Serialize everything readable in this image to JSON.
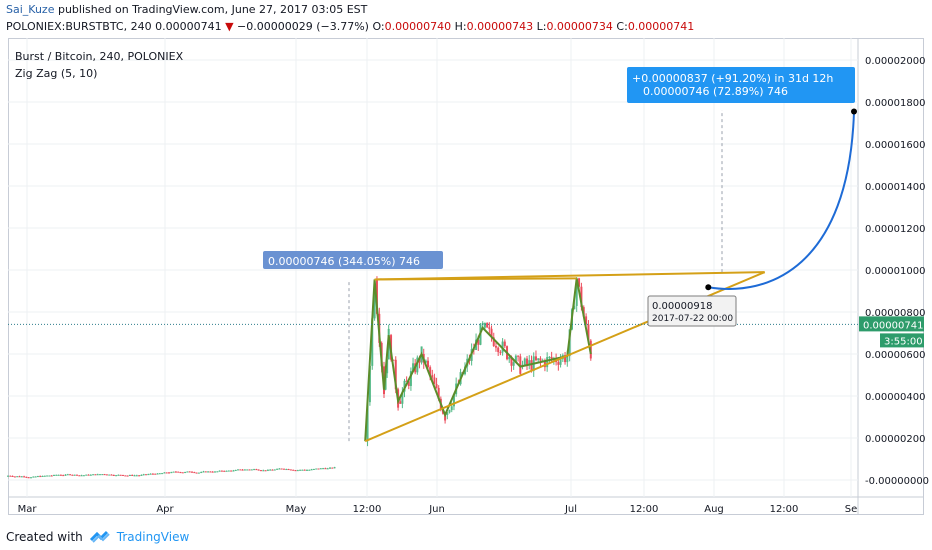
{
  "header": {
    "author": "Sai_Kuze",
    "published": " published on TradingView.com, June 27, 2017 03:05 EST",
    "symbol_line_prefix": "POLONIEX:BURSTBTC, 240  0.00000741 ",
    "change_arrow": "▼",
    "change": " −0.00000029 (−3.77%) ",
    "o_label": "O:",
    "o_val": "0.00000740",
    "h_label": " H:",
    "h_val": "0.00000743",
    "l_label": " L:",
    "l_val": "0.00000734",
    "c_label": " C:",
    "c_val": "0.00000741"
  },
  "legend": {
    "series_title": "Burst / Bitcoin, 240, POLONIEX",
    "indicator": "Zig Zag (5, 10)"
  },
  "footer": {
    "created_with": "Created with",
    "brand": "TradingView"
  },
  "colors": {
    "candle_up": "#53b987",
    "candle_down": "#eb4d5c",
    "zigzag": "#5b8c2a",
    "trendline": "#d4a017",
    "projection": "#1e6bd6",
    "label_blue": "#6a92d2"
  },
  "chart_data": {
    "type": "candlestick",
    "title": "Burst / Bitcoin, 240, POLONIEX",
    "y_ticks": [
      "0.00002000",
      "0.00001800",
      "0.00001600",
      "0.00001400",
      "0.00001200",
      "0.00001000",
      "0.00000800",
      "0.00000600",
      "0.00000400",
      "0.00000200",
      "-0.00000000"
    ],
    "x_ticks": [
      "Mar",
      "Apr",
      "May",
      "12:00",
      "Jun",
      "Jul",
      "12:00",
      "Aug",
      "12:00",
      "Se"
    ],
    "ylim": [
      0,
      2e-05
    ],
    "last_price": "0.00000741",
    "countdown": "3:55:00",
    "zigzag": [
      {
        "x": "2017-05-10",
        "y": 1.85e-06
      },
      {
        "x": "2017-05-12",
        "y": 9.55e-06
      },
      {
        "x": "2017-05-14",
        "y": 4.3e-06
      },
      {
        "x": "2017-05-15",
        "y": 6.9e-06
      },
      {
        "x": "2017-05-17",
        "y": 3.75e-06
      },
      {
        "x": "2017-05-22",
        "y": 6e-06
      },
      {
        "x": "2017-05-27",
        "y": 3.1e-06
      },
      {
        "x": "2017-06-04",
        "y": 7.25e-06
      },
      {
        "x": "2017-06-12",
        "y": 5.4e-06
      },
      {
        "x": "2017-06-22",
        "y": 5.9e-06
      },
      {
        "x": "2017-06-24",
        "y": 9.6e-06
      },
      {
        "x": "2017-06-27",
        "y": 6e-06
      }
    ],
    "trendlines": [
      {
        "from": {
          "x": "2017-05-12",
          "y": 9.55e-06
        },
        "to": {
          "x": "2017-08-03",
          "y": 9.9e-06
        }
      },
      {
        "from": {
          "x": "2017-05-10",
          "y": 1.85e-06
        },
        "to": {
          "x": "2017-08-03",
          "y": 9.9e-06
        }
      },
      {
        "from": {
          "x": "2017-05-12",
          "y": 9.55e-06
        },
        "to": {
          "x": "2017-06-24",
          "y": 9.6e-06
        }
      }
    ],
    "projection_start": {
      "x": "2017-07-22",
      "y": 9.18e-06
    },
    "projection_end": {
      "x": "2017-08-22",
      "y": 1.755e-05
    },
    "annotations": {
      "range_label": "0.00000746 (344.05%) 746",
      "target_label_1": "+0.00000837 (+91.20%) in 31d 12h",
      "target_label_2": "0.00000746 (72.89%) 746",
      "point_value": "0.00000918",
      "point_date": "2017-07-22 00:00"
    }
  }
}
